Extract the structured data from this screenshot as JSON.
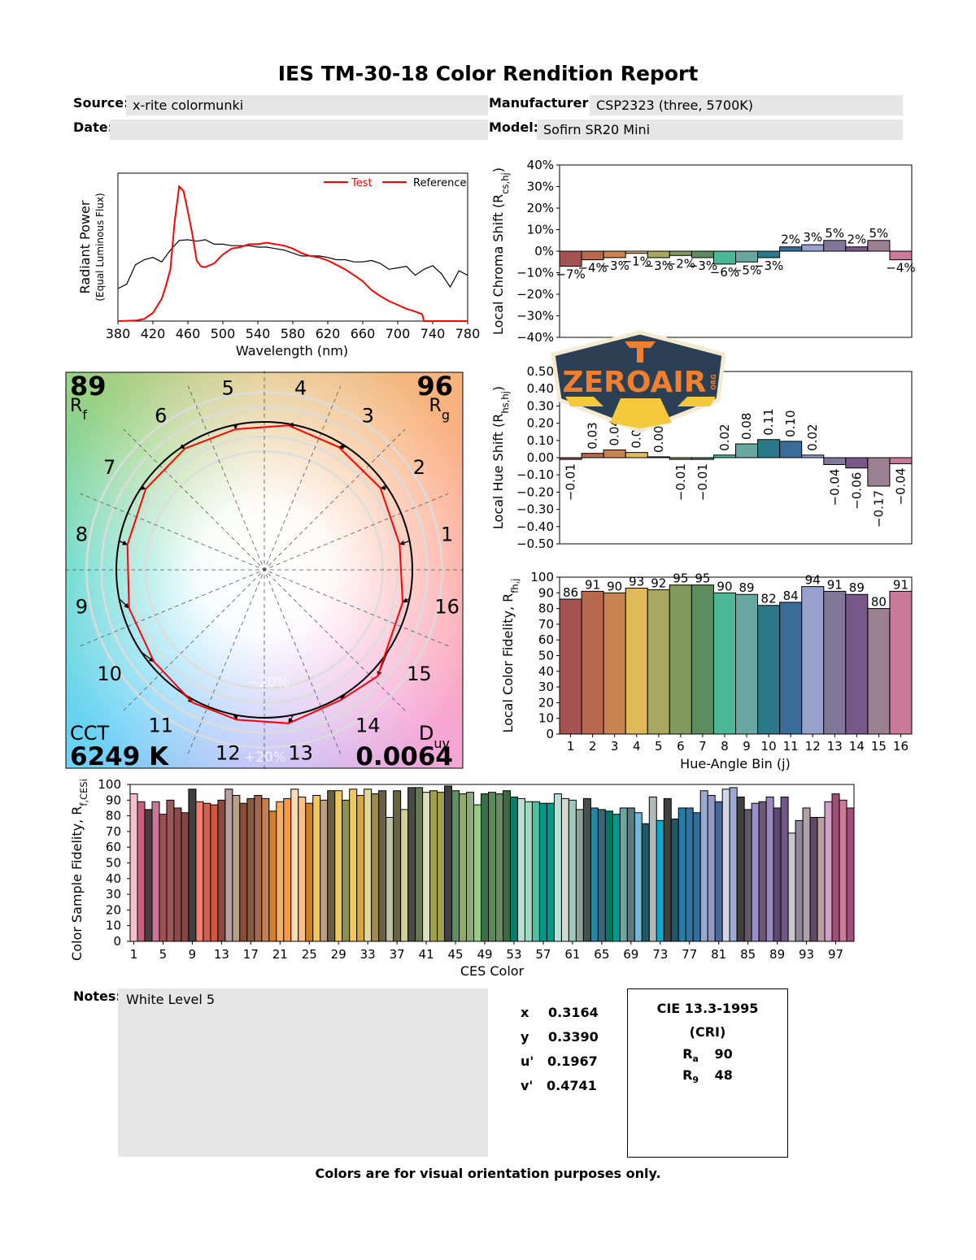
{
  "title": "IES TM-30-18 Color Rendition Report",
  "header": {
    "source_label": "Source:",
    "source_value": "x-rite colormunki",
    "manufacturer_label": "Manufacturer:",
    "manufacturer_value": "CSP2323 (three, 5700K)",
    "date_label": "Date:",
    "date_value": "",
    "model_label": "Model:",
    "model_value": "Sofirn SR20 Mini"
  },
  "logo": {
    "text": "ZEROAIR",
    "suffix": "ORG",
    "colors": {
      "bg": "#2b4055",
      "text": "#f08030",
      "rays": "#f5c93c",
      "border": "#f3ead0"
    }
  },
  "bin_colors": [
    "#a55352",
    "#b8684c",
    "#c88450",
    "#e0b95a",
    "#a8a860",
    "#7f9a5c",
    "#5f8c5e",
    "#4cb898",
    "#68a8a0",
    "#2a7888",
    "#3a6c98",
    "#98a0cc",
    "#807898",
    "#785888",
    "#9a8090",
    "#c87a98"
  ],
  "vector_graphic": {
    "rf_value": "89",
    "rf_label": "R",
    "rf_sub": "f",
    "rg_value": "96",
    "rg_label": "R",
    "rg_sub": "g",
    "cct_label": "CCT",
    "cct_value": "6249 K",
    "duv_label": "D",
    "duv_sub": "uv",
    "duv_value": "0.0064",
    "ring_minus": "−20%",
    "ring_plus": "+20%",
    "bin_labels": [
      "1",
      "2",
      "3",
      "4",
      "5",
      "6",
      "7",
      "8",
      "9",
      "10",
      "11",
      "12",
      "13",
      "14",
      "15",
      "16"
    ],
    "test_color": "#ff0000",
    "reference_color": "#000000"
  },
  "chart_data": [
    {
      "type": "line",
      "xlabel": "Wavelength (nm)",
      "ylabel": "Radiant Power",
      "ylabel_sub": "(Equal Luminous Flux)",
      "xlim": [
        380,
        780
      ],
      "x_ticks": [
        "380",
        "420",
        "460",
        "500",
        "540",
        "580",
        "620",
        "660",
        "700",
        "740",
        "780"
      ],
      "legend": "top-right",
      "series": [
        {
          "name": "Test",
          "color": "#ff0000",
          "x": [
            380,
            400,
            410,
            420,
            430,
            435,
            440,
            445,
            450,
            455,
            460,
            465,
            470,
            475,
            480,
            490,
            500,
            510,
            520,
            530,
            540,
            550,
            560,
            570,
            580,
            590,
            600,
            610,
            620,
            630,
            640,
            650,
            660,
            670,
            680,
            690,
            700,
            710,
            720,
            728,
            730,
            780
          ],
          "y": [
            0,
            0.004,
            0.015,
            0.055,
            0.15,
            0.24,
            0.35,
            0.68,
            0.91,
            0.88,
            0.74,
            0.59,
            0.41,
            0.37,
            0.365,
            0.39,
            0.45,
            0.49,
            0.5,
            0.52,
            0.52,
            0.53,
            0.52,
            0.51,
            0.49,
            0.46,
            0.44,
            0.43,
            0.41,
            0.38,
            0.35,
            0.31,
            0.27,
            0.21,
            0.17,
            0.135,
            0.11,
            0.083,
            0.065,
            0.046,
            0,
            0
          ]
        },
        {
          "name": "Reference",
          "color": "#000000",
          "x": [
            380,
            390,
            400,
            410,
            420,
            430,
            440,
            450,
            460,
            470,
            480,
            490,
            500,
            510,
            520,
            530,
            540,
            550,
            560,
            570,
            580,
            590,
            600,
            610,
            620,
            630,
            640,
            650,
            660,
            670,
            680,
            690,
            700,
            710,
            720,
            730,
            740,
            750,
            760,
            770,
            780
          ],
          "y": [
            0.22,
            0.25,
            0.38,
            0.415,
            0.43,
            0.4,
            0.48,
            0.545,
            0.55,
            0.54,
            0.55,
            0.52,
            0.52,
            0.51,
            0.51,
            0.51,
            0.5,
            0.5,
            0.49,
            0.48,
            0.46,
            0.44,
            0.44,
            0.44,
            0.43,
            0.415,
            0.415,
            0.4,
            0.4,
            0.41,
            0.39,
            0.35,
            0.36,
            0.37,
            0.31,
            0.35,
            0.375,
            0.32,
            0.23,
            0.34,
            0.31
          ]
        }
      ],
      "legend_line_colors": [
        "#ff0000",
        "#ff0000"
      ]
    },
    {
      "type": "bar",
      "ylabel": "Local Chroma Shift (R",
      "ylabel_sub": "cs,hj",
      "ylabel_end": ")",
      "ylim": [
        -40,
        40
      ],
      "y_ticks": [
        "40%",
        "30%",
        "20%",
        "10%",
        "0%",
        "−10%",
        "−20%",
        "−30%",
        "−40%"
      ],
      "categories": [
        "1",
        "2",
        "3",
        "4",
        "5",
        "6",
        "7",
        "8",
        "9",
        "10",
        "11",
        "12",
        "13",
        "14",
        "15",
        "16"
      ],
      "values": [
        -7,
        -4,
        -3,
        -1,
        -3,
        -2,
        -3,
        -6,
        -5,
        -3,
        2,
        3,
        5,
        2,
        5,
        -4
      ],
      "value_labels": [
        "−7%",
        "−4%",
        "−3%",
        "−1%",
        "−3%",
        "−2%",
        "−3%",
        "−6%",
        "−5%",
        "−3%",
        "2%",
        "3%",
        "5%",
        "2%",
        "5%",
        "−4%"
      ]
    },
    {
      "type": "bar",
      "ylabel": "Local Hue Shift (R",
      "ylabel_sub": "hs,hj",
      "ylabel_end": ")",
      "ylim": [
        -0.5,
        0.5
      ],
      "y_ticks": [
        "0.50",
        "0.40",
        "0.30",
        "0.20",
        "0.10",
        "0.00",
        "−0.10",
        "−0.20",
        "−0.30",
        "−0.40",
        "−0.50"
      ],
      "categories": [
        "1",
        "2",
        "3",
        "4",
        "5",
        "6",
        "7",
        "8",
        "9",
        "10",
        "11",
        "12",
        "13",
        "14",
        "15",
        "16"
      ],
      "values": [
        -0.01,
        0.025,
        0.045,
        0.03,
        0.005,
        -0.01,
        -0.01,
        0.015,
        0.08,
        0.105,
        0.095,
        0.015,
        -0.04,
        -0.06,
        -0.165,
        -0.035
      ],
      "value_labels": [
        "−0.01",
        "0.03",
        "0.04",
        "0.03",
        "0.00",
        "−0.01",
        "−0.01",
        "0.02",
        "0.08",
        "0.11",
        "0.10",
        "0.02",
        "−0.04",
        "−0.06",
        "−0.17",
        "−0.04"
      ]
    },
    {
      "type": "bar",
      "ylabel": "Local Color Fidelity, R",
      "ylabel_sub": "fh,j",
      "xlabel": "Hue-Angle Bin (j)",
      "ylim": [
        0,
        100
      ],
      "y_ticks": [
        "100",
        "90",
        "80",
        "70",
        "60",
        "50",
        "40",
        "30",
        "20",
        "10",
        "0"
      ],
      "categories": [
        "1",
        "2",
        "3",
        "4",
        "5",
        "6",
        "7",
        "8",
        "9",
        "10",
        "11",
        "12",
        "13",
        "14",
        "15",
        "16"
      ],
      "values": [
        86,
        91,
        90,
        93,
        92,
        95,
        95,
        90,
        89,
        82,
        84,
        94,
        91,
        89,
        80,
        91
      ],
      "value_labels": [
        "86",
        "91",
        "90",
        "93",
        "92",
        "95",
        "95",
        "90",
        "89",
        "82",
        "84",
        "94",
        "91",
        "89",
        "80",
        "91"
      ]
    },
    {
      "type": "bar",
      "ylabel": "Color Sample Fidelity, R",
      "ylabel_sub": "f,CESi",
      "xlabel": "CES Color",
      "ylim": [
        0,
        100
      ],
      "y_ticks": [
        "100",
        "90",
        "80",
        "70",
        "60",
        "50",
        "40",
        "30",
        "20",
        "10",
        "0"
      ],
      "x_ticks": [
        "1",
        "5",
        "9",
        "13",
        "17",
        "21",
        "25",
        "29",
        "33",
        "37",
        "41",
        "45",
        "49",
        "53",
        "57",
        "61",
        "65",
        "69",
        "73",
        "77",
        "81",
        "85",
        "89",
        "93",
        "97"
      ],
      "values": [
        94,
        89,
        84,
        89,
        81,
        90,
        85,
        82,
        97,
        89,
        88,
        87,
        90,
        97,
        93,
        88,
        91,
        93,
        91,
        83,
        89,
        91,
        97,
        92,
        88,
        93,
        90,
        96,
        96,
        90,
        97,
        93,
        97,
        94,
        96,
        79,
        96,
        84,
        98,
        98,
        95,
        96,
        95,
        99,
        96,
        94,
        95,
        87,
        94,
        95,
        94,
        96,
        92,
        91,
        89,
        89,
        88,
        88,
        94,
        91,
        90,
        84,
        91,
        85,
        84,
        83,
        81,
        85,
        85,
        82,
        75,
        92,
        77,
        91,
        78,
        85,
        85,
        82,
        96,
        93,
        89,
        97,
        98,
        92,
        84,
        88,
        89,
        92,
        85,
        92,
        69,
        77,
        85,
        79,
        79,
        89,
        94,
        90,
        85
      ],
      "colors": [
        "#f4c0d0",
        "#c86080",
        "#503c40",
        "#c87898",
        "#a05050",
        "#9a5a5a",
        "#8a4a48",
        "#884444",
        "#404040",
        "#f08070",
        "#d06050",
        "#d05840",
        "#884a40",
        "#b8a0a0",
        "#b8a088",
        "#885038",
        "#8a5a40",
        "#a06850",
        "#c88050",
        "#d08028",
        "#f8b060",
        "#f89848",
        "#f8dcb8",
        "#f8c088",
        "#d08020",
        "#f0c860",
        "#b8a080",
        "#686040",
        "#f0c860",
        "#909050",
        "#f0c860",
        "#d8a840",
        "#e0d898",
        "#a08c48",
        "#686040",
        "#c0c0a8",
        "#686440",
        "#d0d098",
        "#484c44",
        "#687850",
        "#d8e0c0",
        "#a0a048",
        "#a0a048",
        "#404040",
        "#609060",
        "#90a868",
        "#90a880",
        "#90d080",
        "#3a7048",
        "#5a8858",
        "#6a8a68",
        "#3a6a40",
        "#00806a",
        "#b8e0d0",
        "#a0d8c0",
        "#50c0a0",
        "#009888",
        "#009888",
        "#b8e0d8",
        "#d0d8d0",
        "#a0c8b8",
        "#90a098",
        "#485050",
        "#2088a8",
        "#386878",
        "#007868",
        "#009890",
        "#68a8a0",
        "#607880",
        "#70b8d8",
        "#205868",
        "#b0b8b8",
        "#10a8c8",
        "#404040",
        "#205868",
        "#2080a8",
        "#3870a0",
        "#3070a0",
        "#98a8d0",
        "#9898c8",
        "#486898",
        "#d0d8e8",
        "#a0a8d0",
        "#404040",
        "#605868",
        "#9890c8",
        "#705878",
        "#9a88c0",
        "#604870",
        "#705888",
        "#c8c8c8",
        "#908898",
        "#b0a0a8",
        "#604868",
        "#b8a0a0",
        "#d0a0c8",
        "#a05078",
        "#d07898",
        "#a05078"
      ]
    }
  ],
  "notes": {
    "label": "Notes:",
    "value": "White Level 5"
  },
  "chromaticity": [
    {
      "label": "x",
      "value": "0.3164"
    },
    {
      "label": "y",
      "value": "0.3390"
    },
    {
      "label": "u'",
      "value": "0.1967"
    },
    {
      "label": "v'",
      "value": "0.4741"
    }
  ],
  "cri": {
    "title": "CIE 13.3-1995",
    "subtitle": "(CRI)",
    "ra_label": "R",
    "ra_sub": "a",
    "ra_value": "90",
    "r9_label": "R",
    "r9_sub": "9",
    "r9_value": "48"
  },
  "footer": "Colors are for visual orientation purposes only."
}
